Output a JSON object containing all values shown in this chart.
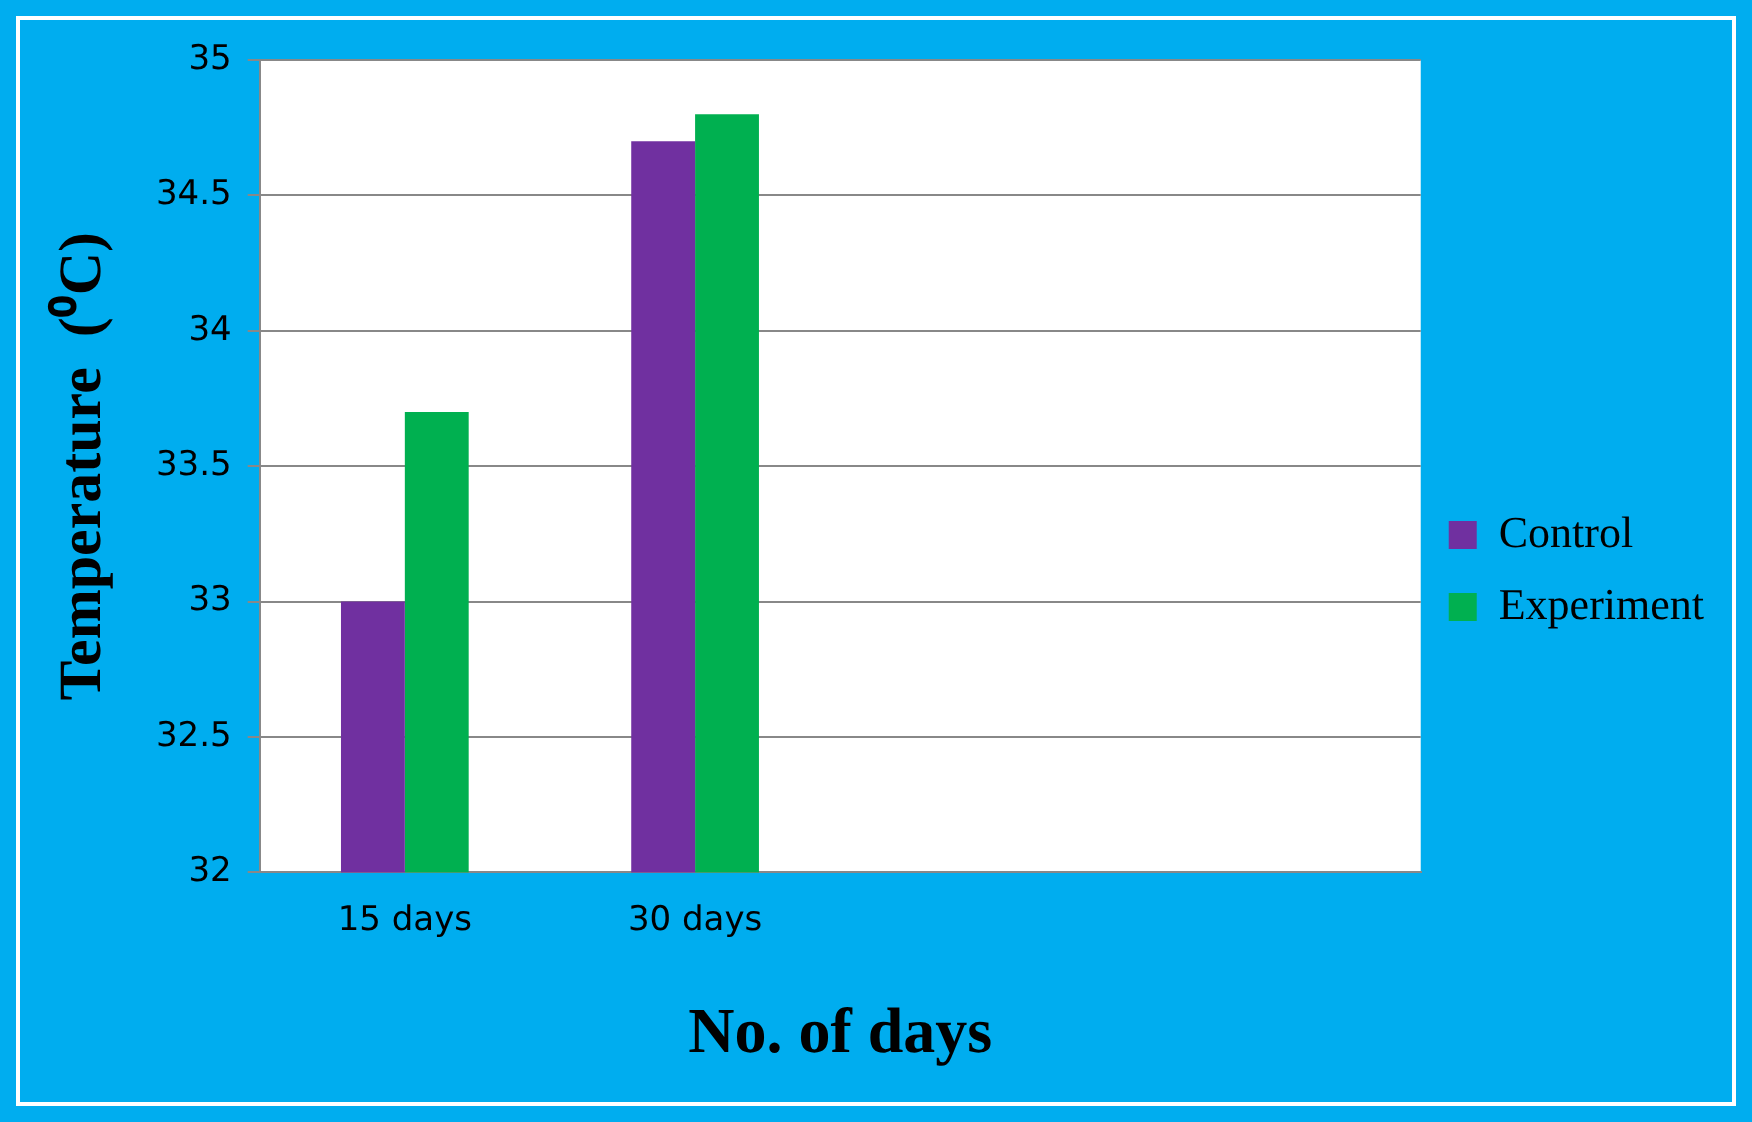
{
  "chart_data": {
    "type": "bar",
    "xlabel": "No. of days",
    "ylabel": "Temperature  (⁰C)",
    "categories": [
      "15 days",
      "30 days",
      null,
      null
    ],
    "series": [
      {
        "name": "Control",
        "color": "#7030a0",
        "values": [
          33.0,
          34.7,
          null,
          null
        ]
      },
      {
        "name": "Experiment",
        "color": "#00b050",
        "values": [
          33.7,
          34.8,
          null,
          null
        ]
      }
    ],
    "ylim": [
      32,
      35
    ],
    "yticks": [
      32,
      32.5,
      33,
      33.5,
      34,
      34.5,
      35
    ],
    "grid": "y",
    "legend": "right"
  }
}
